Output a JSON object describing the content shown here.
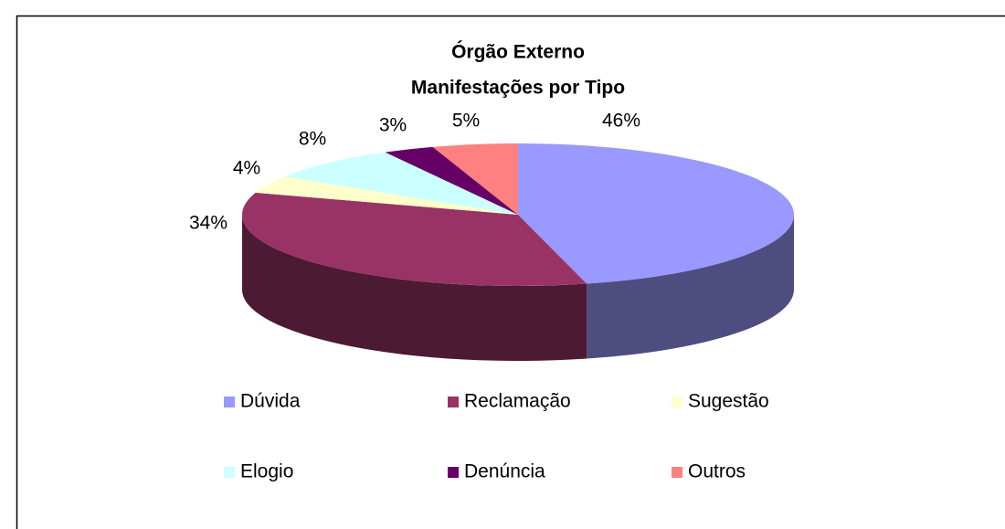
{
  "chart_data": {
    "type": "pie3d",
    "title": "Órgão Externo",
    "subtitle": "Manifestações por Tipo",
    "categories": [
      "Dúvida",
      "Reclamação",
      "Sugestão",
      "Elogio",
      "Denúncia",
      "Outros"
    ],
    "values": [
      46,
      34,
      4,
      8,
      3,
      5
    ],
    "value_labels": [
      "46%",
      "34%",
      "4%",
      "8%",
      "3%",
      "5%"
    ],
    "colors": [
      "#9999ff",
      "#993366",
      "#ffffcc",
      "#ccffff",
      "#660066",
      "#ff8080"
    ],
    "legend": "bottom"
  }
}
